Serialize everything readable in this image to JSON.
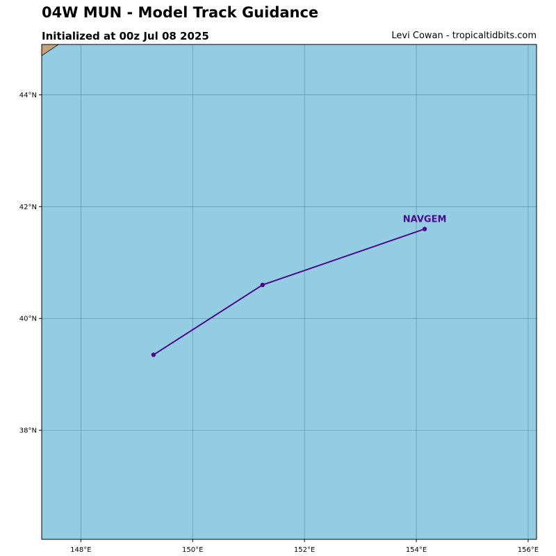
{
  "header": {
    "title": "04W MUN - Model Track Guidance",
    "subtitle": "Initialized at 00z Jul 08 2025",
    "credit": "Levi Cowan - tropicaltidbits.com"
  },
  "map": {
    "lon_range": [
      147.3,
      156.15
    ],
    "lat_range": [
      36.05,
      44.9
    ],
    "ocean_color": "#94cde3",
    "land_color": "#c4a27a",
    "grid_color": "#3c6b78",
    "lon_ticks": [
      {
        "value": 148,
        "label": "148°E"
      },
      {
        "value": 150,
        "label": "150°E"
      },
      {
        "value": 152,
        "label": "152°E"
      },
      {
        "value": 154,
        "label": "154°E"
      },
      {
        "value": 156,
        "label": "156°E"
      }
    ],
    "lat_ticks": [
      {
        "value": 38,
        "label": "38°N"
      },
      {
        "value": 40,
        "label": "40°N"
      },
      {
        "value": 42,
        "label": "42°N"
      },
      {
        "value": 44,
        "label": "44°N"
      }
    ],
    "land": [
      {
        "lon": 147.3,
        "lat": 44.9
      },
      {
        "lon": 147.6,
        "lat": 44.9
      },
      {
        "lon": 147.45,
        "lat": 44.8
      },
      {
        "lon": 147.3,
        "lat": 44.7
      }
    ]
  },
  "tracks": [
    {
      "name": "NAVGEM",
      "color": "#4b0a8c",
      "points": [
        {
          "lon": 149.3,
          "lat": 39.35
        },
        {
          "lon": 151.25,
          "lat": 40.6
        },
        {
          "lon": 154.15,
          "lat": 41.6
        }
      ]
    }
  ]
}
